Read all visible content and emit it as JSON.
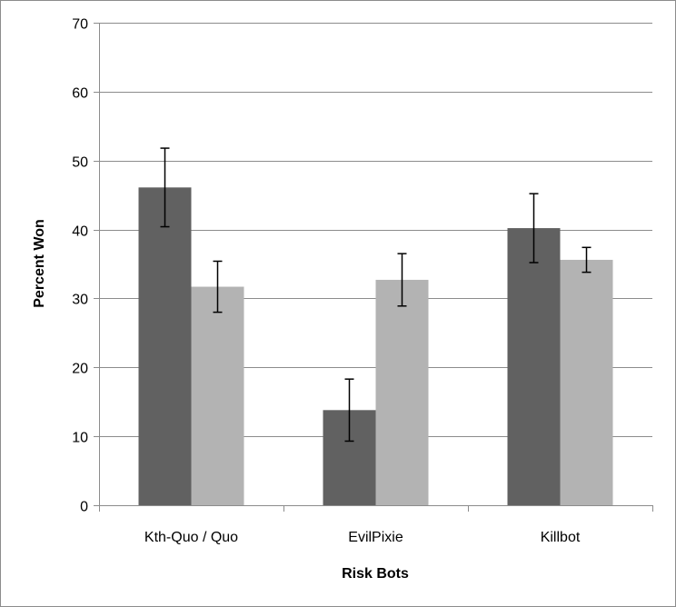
{
  "chart_data": {
    "type": "bar",
    "title": "",
    "xlabel": "Risk Bots",
    "ylabel": "Percent Won",
    "ylim": [
      0,
      70
    ],
    "yticks": [
      0,
      10,
      20,
      30,
      40,
      50,
      60,
      70
    ],
    "grid": true,
    "legend": "none",
    "categories": [
      "Kth-Quo / Quo",
      "EvilPixie",
      "Killbot"
    ],
    "series": [
      {
        "values": [
          46.1,
          13.8,
          40.2
        ],
        "errors": [
          5.7,
          4.5,
          5.0
        ],
        "color": "#616161"
      },
      {
        "values": [
          31.7,
          32.7,
          35.6
        ],
        "errors": [
          3.7,
          3.8,
          1.8
        ],
        "color": "#b3b3b3"
      }
    ]
  }
}
